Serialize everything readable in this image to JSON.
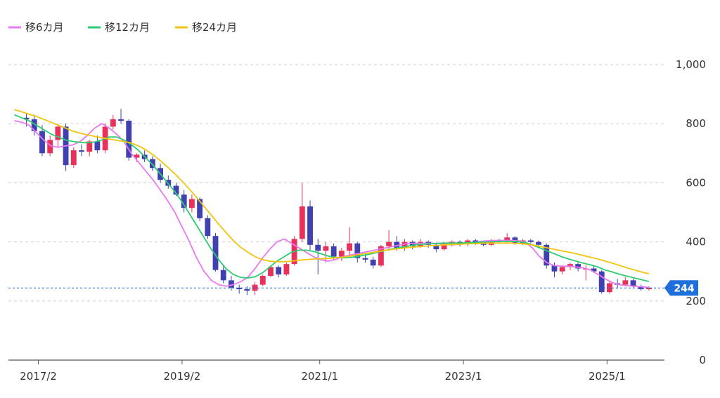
{
  "chart_data": {
    "type": "candlestick",
    "title": "",
    "xlabel": "",
    "ylabel": "",
    "ylim": [
      0,
      1000
    ],
    "grid": true,
    "legend_placement": "top-left",
    "y_ticks": [
      "0",
      "200",
      "400",
      "600",
      "800",
      "1,000"
    ],
    "x_ticks": [
      "2017/2",
      "2019/2",
      "2021/1",
      "2023/1",
      "2025/1"
    ],
    "x_tick_months": [
      2,
      26,
      49,
      73,
      97
    ],
    "series": [
      {
        "name": "移6カ月",
        "color": "#e879f0",
        "values": [
          810,
          805,
          795,
          770,
          745,
          725,
          720,
          725,
          728,
          740,
          760,
          785,
          800,
          785,
          765,
          740,
          700,
          670,
          640,
          610,
          575,
          540,
          500,
          450,
          400,
          345,
          300,
          270,
          255,
          250,
          255,
          265,
          280,
          310,
          345,
          375,
          400,
          410,
          395,
          380,
          365,
          350,
          340,
          335,
          340,
          350,
          355,
          360,
          365,
          370,
          375,
          380,
          385,
          390,
          395,
          395,
          395,
          395,
          395,
          392,
          390,
          392,
          395,
          398,
          402,
          404,
          405,
          405,
          405,
          404,
          400,
          380,
          350,
          330,
          320,
          318,
          318,
          315,
          312,
          305,
          290,
          275,
          262,
          255,
          252,
          250,
          248,
          246
        ]
      },
      {
        "name": "移12カ月",
        "color": "#2ecc71",
        "values": [
          830,
          820,
          810,
          795,
          780,
          765,
          755,
          745,
          740,
          737,
          735,
          738,
          745,
          755,
          755,
          745,
          730,
          710,
          685,
          660,
          630,
          600,
          570,
          535,
          495,
          455,
          415,
          375,
          340,
          310,
          290,
          280,
          278,
          282,
          295,
          315,
          335,
          350,
          365,
          372,
          372,
          368,
          360,
          352,
          347,
          346,
          347,
          350,
          355,
          360,
          366,
          372,
          377,
          382,
          386,
          390,
          392,
          394,
          395,
          396,
          396,
          396,
          397,
          398,
          399,
          400,
          401,
          402,
          402,
          401,
          398,
          390,
          380,
          370,
          360,
          350,
          342,
          335,
          328,
          322,
          315,
          305,
          298,
          290,
          284,
          278,
          272,
          266
        ]
      },
      {
        "name": "移24カ月",
        "color": "#f1c40f",
        "values": [
          848,
          840,
          832,
          825,
          815,
          805,
          795,
          785,
          775,
          768,
          762,
          757,
          752,
          748,
          744,
          740,
          735,
          725,
          712,
          695,
          675,
          653,
          630,
          605,
          578,
          550,
          520,
          490,
          460,
          432,
          405,
          382,
          365,
          350,
          340,
          335,
          333,
          333,
          335,
          338,
          340,
          342,
          343,
          344,
          346,
          348,
          352,
          356,
          360,
          364,
          368,
          372,
          375,
          378,
          381,
          383,
          385,
          387,
          388,
          390,
          391,
          392,
          393,
          394,
          395,
          396,
          396,
          396,
          396,
          395,
          393,
          390,
          385,
          380,
          375,
          370,
          365,
          360,
          354,
          348,
          342,
          335,
          328,
          320,
          312,
          305,
          298,
          292
        ]
      }
    ],
    "candles": [
      {
        "o": 820,
        "h": 835,
        "l": 790,
        "c": 815
      },
      {
        "o": 815,
        "h": 830,
        "l": 760,
        "c": 775
      },
      {
        "o": 775,
        "h": 795,
        "l": 690,
        "c": 700
      },
      {
        "o": 700,
        "h": 760,
        "l": 690,
        "c": 745
      },
      {
        "o": 745,
        "h": 800,
        "l": 720,
        "c": 790
      },
      {
        "o": 790,
        "h": 800,
        "l": 640,
        "c": 660
      },
      {
        "o": 660,
        "h": 720,
        "l": 650,
        "c": 710
      },
      {
        "o": 710,
        "h": 730,
        "l": 690,
        "c": 705
      },
      {
        "o": 705,
        "h": 745,
        "l": 690,
        "c": 740
      },
      {
        "o": 740,
        "h": 760,
        "l": 700,
        "c": 710
      },
      {
        "o": 710,
        "h": 800,
        "l": 700,
        "c": 790
      },
      {
        "o": 790,
        "h": 830,
        "l": 780,
        "c": 815
      },
      {
        "o": 815,
        "h": 850,
        "l": 800,
        "c": 810
      },
      {
        "o": 810,
        "h": 815,
        "l": 675,
        "c": 685
      },
      {
        "o": 685,
        "h": 700,
        "l": 670,
        "c": 695
      },
      {
        "o": 695,
        "h": 710,
        "l": 670,
        "c": 680
      },
      {
        "o": 680,
        "h": 690,
        "l": 640,
        "c": 650
      },
      {
        "o": 650,
        "h": 665,
        "l": 600,
        "c": 610
      },
      {
        "o": 610,
        "h": 625,
        "l": 580,
        "c": 590
      },
      {
        "o": 590,
        "h": 600,
        "l": 555,
        "c": 560
      },
      {
        "o": 560,
        "h": 575,
        "l": 500,
        "c": 515
      },
      {
        "o": 515,
        "h": 560,
        "l": 500,
        "c": 545
      },
      {
        "o": 545,
        "h": 550,
        "l": 470,
        "c": 480
      },
      {
        "o": 480,
        "h": 490,
        "l": 410,
        "c": 420
      },
      {
        "o": 420,
        "h": 430,
        "l": 300,
        "c": 305
      },
      {
        "o": 305,
        "h": 320,
        "l": 260,
        "c": 270
      },
      {
        "o": 270,
        "h": 285,
        "l": 235,
        "c": 245
      },
      {
        "o": 245,
        "h": 255,
        "l": 225,
        "c": 240
      },
      {
        "o": 240,
        "h": 250,
        "l": 220,
        "c": 235
      },
      {
        "o": 235,
        "h": 265,
        "l": 220,
        "c": 255
      },
      {
        "o": 255,
        "h": 290,
        "l": 250,
        "c": 285
      },
      {
        "o": 285,
        "h": 320,
        "l": 280,
        "c": 315
      },
      {
        "o": 315,
        "h": 320,
        "l": 280,
        "c": 290
      },
      {
        "o": 290,
        "h": 330,
        "l": 285,
        "c": 325
      },
      {
        "o": 325,
        "h": 420,
        "l": 320,
        "c": 410
      },
      {
        "o": 410,
        "h": 600,
        "l": 400,
        "c": 520
      },
      {
        "o": 520,
        "h": 540,
        "l": 370,
        "c": 390
      },
      {
        "o": 390,
        "h": 410,
        "l": 290,
        "c": 370
      },
      {
        "o": 370,
        "h": 400,
        "l": 330,
        "c": 385
      },
      {
        "o": 385,
        "h": 395,
        "l": 340,
        "c": 350
      },
      {
        "o": 350,
        "h": 380,
        "l": 335,
        "c": 370
      },
      {
        "o": 370,
        "h": 450,
        "l": 350,
        "c": 395
      },
      {
        "o": 395,
        "h": 400,
        "l": 330,
        "c": 345
      },
      {
        "o": 345,
        "h": 360,
        "l": 330,
        "c": 340
      },
      {
        "o": 340,
        "h": 350,
        "l": 310,
        "c": 320
      },
      {
        "o": 320,
        "h": 390,
        "l": 315,
        "c": 385
      },
      {
        "o": 385,
        "h": 440,
        "l": 370,
        "c": 400
      },
      {
        "o": 400,
        "h": 420,
        "l": 370,
        "c": 380
      },
      {
        "o": 380,
        "h": 410,
        "l": 370,
        "c": 400
      },
      {
        "o": 400,
        "h": 405,
        "l": 375,
        "c": 385
      },
      {
        "o": 385,
        "h": 410,
        "l": 380,
        "c": 400
      },
      {
        "o": 400,
        "h": 405,
        "l": 380,
        "c": 390
      },
      {
        "o": 390,
        "h": 395,
        "l": 365,
        "c": 375
      },
      {
        "o": 375,
        "h": 400,
        "l": 370,
        "c": 395
      },
      {
        "o": 395,
        "h": 405,
        "l": 385,
        "c": 400
      },
      {
        "o": 400,
        "h": 405,
        "l": 385,
        "c": 395
      },
      {
        "o": 395,
        "h": 410,
        "l": 385,
        "c": 405
      },
      {
        "o": 405,
        "h": 410,
        "l": 390,
        "c": 395
      },
      {
        "o": 395,
        "h": 405,
        "l": 385,
        "c": 390
      },
      {
        "o": 390,
        "h": 410,
        "l": 385,
        "c": 405
      },
      {
        "o": 405,
        "h": 410,
        "l": 395,
        "c": 400
      },
      {
        "o": 400,
        "h": 430,
        "l": 395,
        "c": 415
      },
      {
        "o": 415,
        "h": 420,
        "l": 390,
        "c": 395
      },
      {
        "o": 395,
        "h": 410,
        "l": 390,
        "c": 405
      },
      {
        "o": 405,
        "h": 410,
        "l": 395,
        "c": 400
      },
      {
        "o": 400,
        "h": 405,
        "l": 380,
        "c": 390
      },
      {
        "o": 390,
        "h": 395,
        "l": 310,
        "c": 320
      },
      {
        "o": 320,
        "h": 330,
        "l": 280,
        "c": 300
      },
      {
        "o": 300,
        "h": 320,
        "l": 290,
        "c": 315
      },
      {
        "o": 315,
        "h": 330,
        "l": 305,
        "c": 325
      },
      {
        "o": 325,
        "h": 330,
        "l": 300,
        "c": 310
      },
      {
        "o": 310,
        "h": 320,
        "l": 270,
        "c": 310
      },
      {
        "o": 310,
        "h": 320,
        "l": 295,
        "c": 300
      },
      {
        "o": 300,
        "h": 305,
        "l": 225,
        "c": 230
      },
      {
        "o": 230,
        "h": 265,
        "l": 225,
        "c": 260
      },
      {
        "o": 260,
        "h": 275,
        "l": 245,
        "c": 255
      },
      {
        "o": 255,
        "h": 280,
        "l": 250,
        "c": 270
      },
      {
        "o": 270,
        "h": 275,
        "l": 245,
        "c": 250
      },
      {
        "o": 250,
        "h": 255,
        "l": 235,
        "c": 240
      },
      {
        "o": 240,
        "h": 250,
        "l": 235,
        "c": 245
      }
    ],
    "candle_start_month": 0,
    "candle_end_month": 104,
    "month_range": [
      -3,
      106
    ],
    "up_color": "#e8305a",
    "down_color": "#4040b0",
    "current_value": 244,
    "current_label": "244",
    "current_color": "#1e6fd9"
  }
}
